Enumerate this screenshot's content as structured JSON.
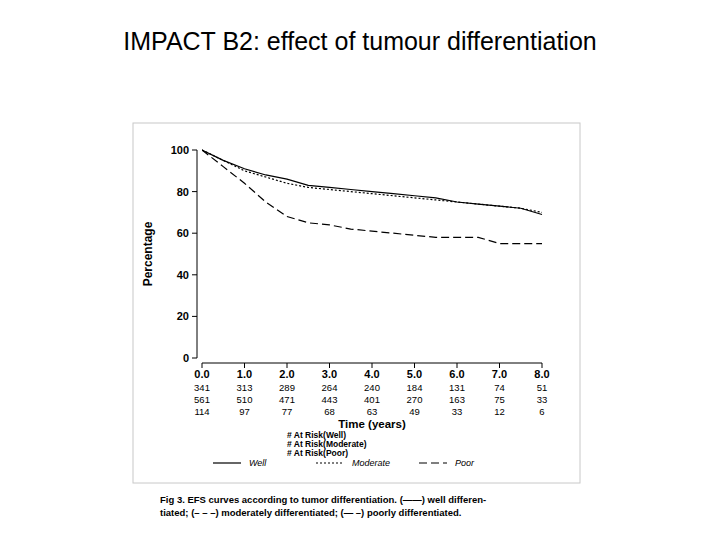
{
  "chart_data": {
    "type": "line",
    "title": "IMPACT B2: effect of tumour differentiation",
    "x_label": "Time (years)",
    "y_label": "Percentage",
    "x": [
      0,
      0.5,
      1.0,
      1.5,
      2.0,
      2.5,
      3.0,
      3.5,
      4.0,
      4.5,
      5.0,
      5.5,
      6.0,
      6.5,
      7.0,
      7.5,
      8.0
    ],
    "series": [
      {
        "name": "Well",
        "color": "#000000",
        "line_style": "solid",
        "values": [
          100,
          95,
          91,
          88,
          86,
          83,
          82,
          81,
          80,
          79,
          78,
          77,
          75,
          74,
          73,
          72,
          69
        ]
      },
      {
        "name": "Moderate",
        "color": "#000000",
        "line_style": "dotted",
        "values": [
          100,
          95,
          90,
          87,
          84,
          82,
          81,
          80,
          79,
          78,
          77,
          76,
          75,
          74,
          73,
          72,
          70
        ]
      },
      {
        "name": "Poor",
        "color": "#000000",
        "line_style": "dashed",
        "values": [
          100,
          92,
          84,
          75,
          68,
          65,
          64,
          62,
          61,
          60,
          59,
          58,
          58,
          58,
          55,
          55,
          55
        ]
      }
    ],
    "xlim": [
      0,
      8
    ],
    "xticks": [
      {
        "value": 0,
        "label": "0.0"
      },
      {
        "value": 1,
        "label": "1.0"
      },
      {
        "value": 2,
        "label": "2.0"
      },
      {
        "value": 3,
        "label": "3.0"
      },
      {
        "value": 4,
        "label": "4.0"
      },
      {
        "value": 5,
        "label": "5.0"
      },
      {
        "value": 6,
        "label": "6.0"
      },
      {
        "value": 7,
        "label": "7.0"
      },
      {
        "value": 8,
        "label": "8.0"
      }
    ],
    "ylim": [
      0,
      100
    ],
    "yticks": [
      0,
      20,
      40,
      60,
      80,
      100
    ],
    "grid": false,
    "legend": "bottom",
    "at_risk": {
      "labels": [
        "# At Risk(Well)",
        "# At Risk(Moderate)",
        "# At Risk(Poor)"
      ],
      "rows": [
        [
          341,
          313,
          289,
          264,
          240,
          184,
          131,
          74,
          51
        ],
        [
          561,
          510,
          471,
          443,
          401,
          270,
          163,
          75,
          33
        ],
        [
          114,
          97,
          77,
          68,
          63,
          49,
          33,
          12,
          6
        ]
      ]
    },
    "annotations": [
      "Fig 3.   EFS curves according to tumor differentiation. (——) well differen-",
      "tiated; (– – –) moderately differentiated; (— –) poorly differentiated."
    ]
  }
}
